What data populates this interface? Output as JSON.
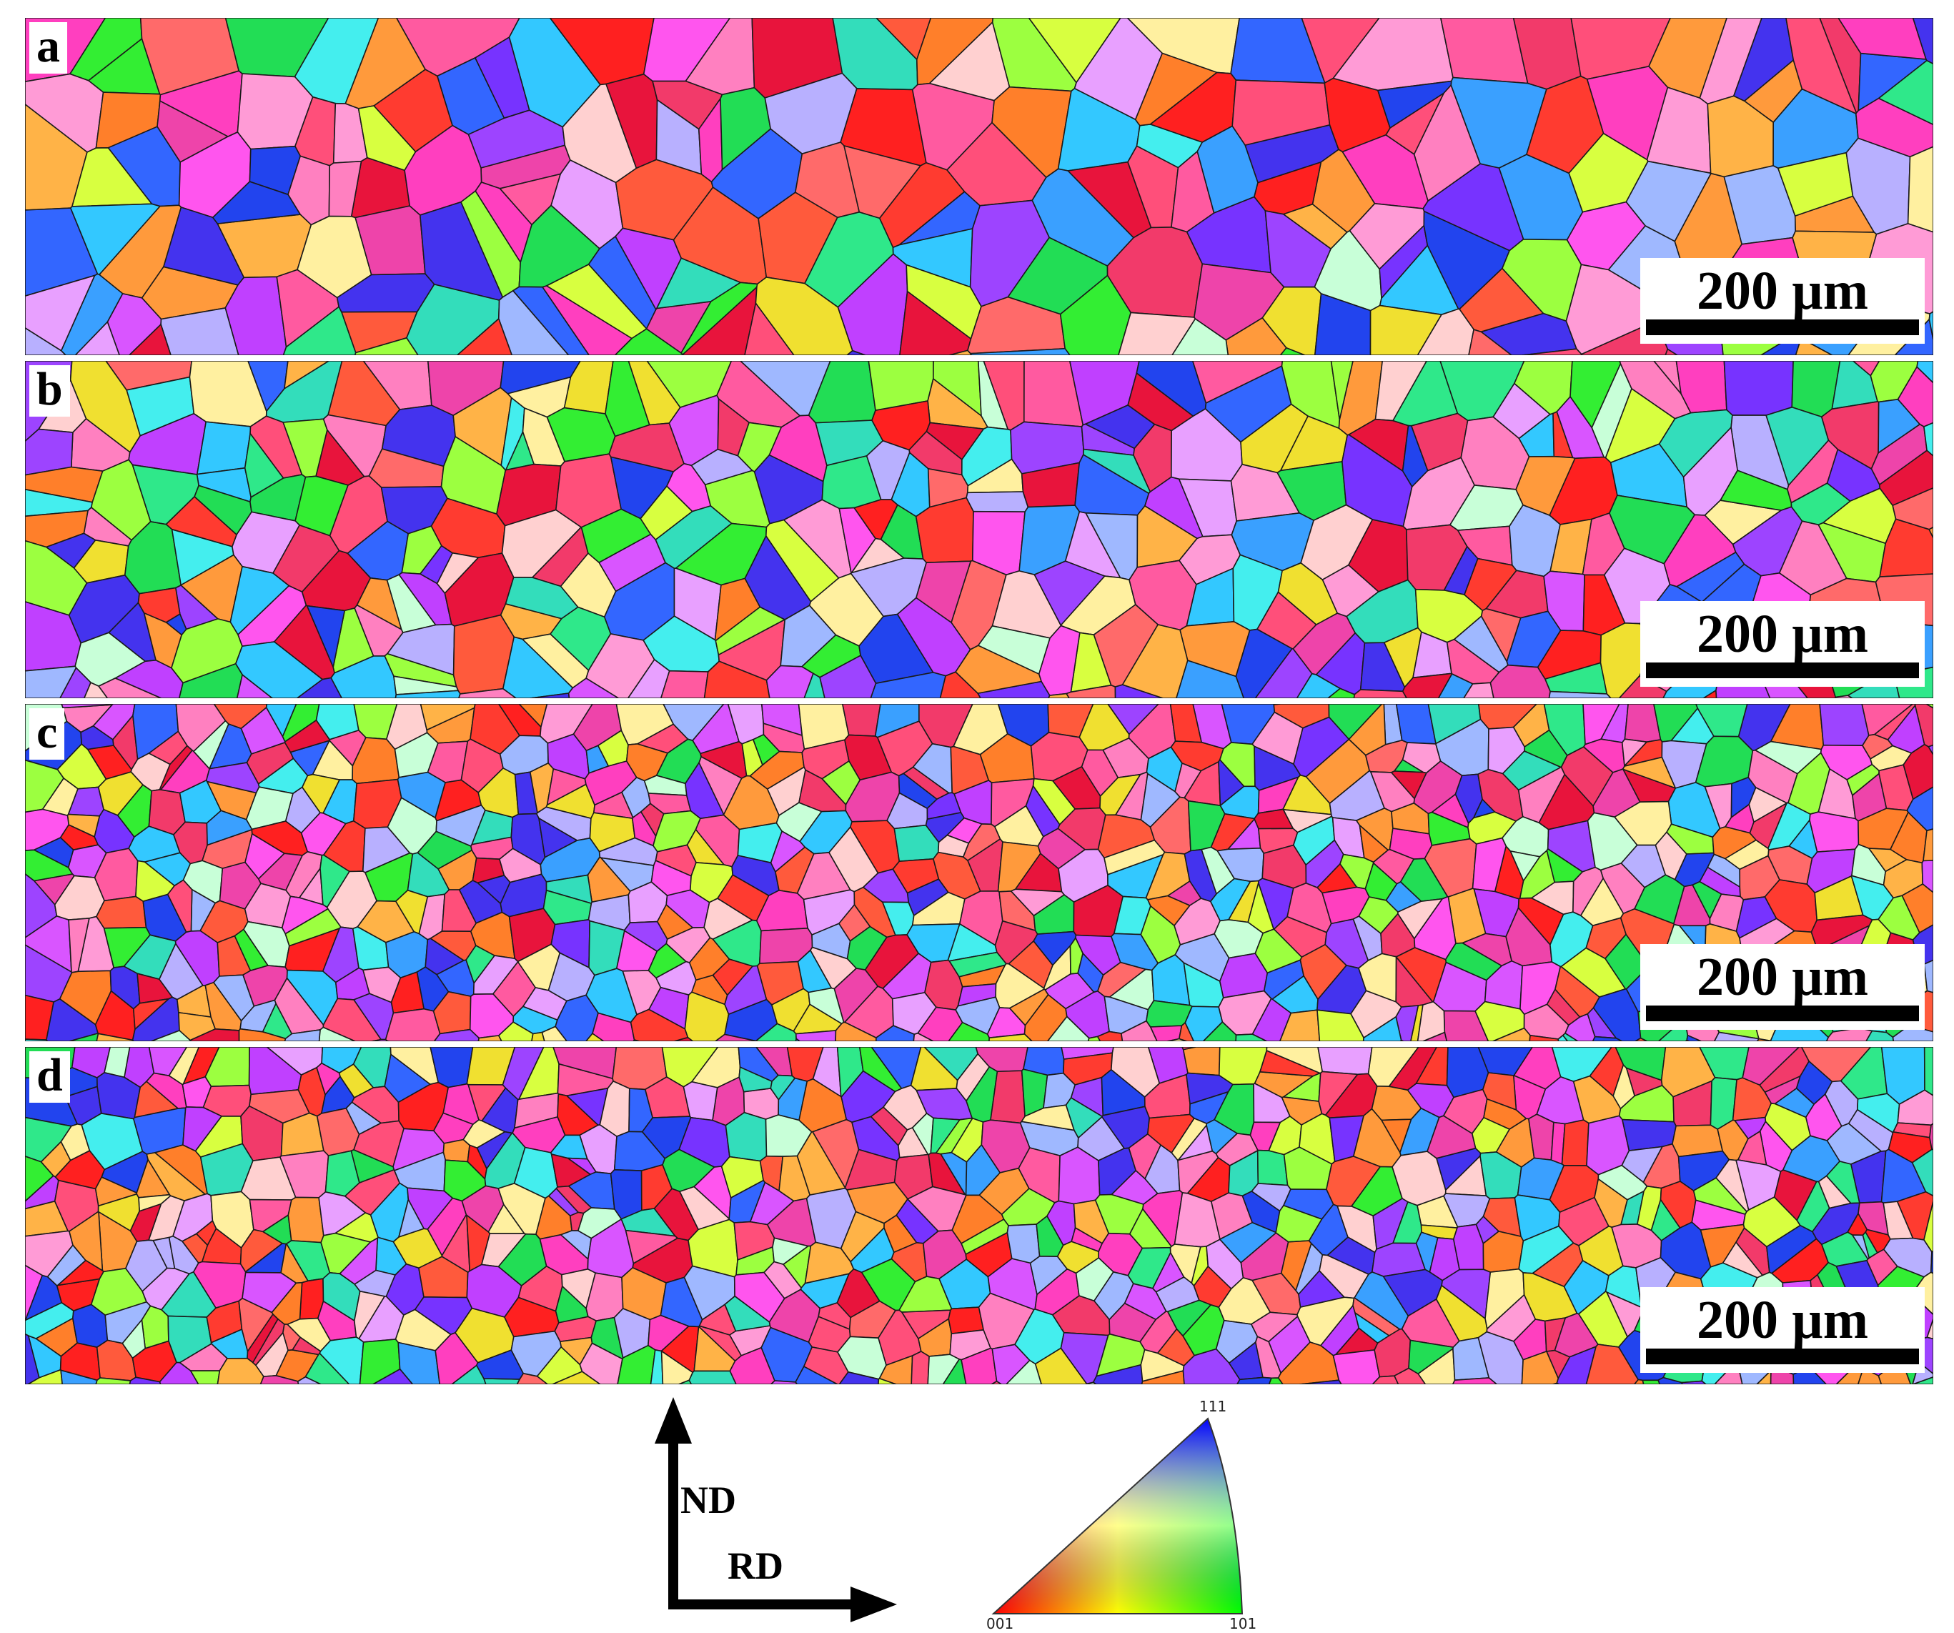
{
  "panels": [
    {
      "label": "a",
      "scale_label": "200 µm",
      "grain_scale": 1.0
    },
    {
      "label": "b",
      "scale_label": "200 µm",
      "grain_scale": 0.78
    },
    {
      "label": "c",
      "scale_label": "200 µm",
      "grain_scale": 0.55
    },
    {
      "label": "d",
      "scale_label": "200 µm",
      "grain_scale": 0.55
    }
  ],
  "axes": {
    "vertical": "ND",
    "horizontal": "RD"
  },
  "ipf_legend": {
    "corners": [
      "001",
      "101",
      "111"
    ],
    "colors": [
      "#ff0000",
      "#00ff00",
      "#0000ff"
    ]
  },
  "grain_palette": [
    "#ff2020",
    "#ff3b30",
    "#e8143c",
    "#ff5a3c",
    "#ff7f2a",
    "#ff9a3c",
    "#ffb347",
    "#f0e030",
    "#d8ff40",
    "#9cff40",
    "#33ee33",
    "#22dd55",
    "#2fe88a",
    "#33ddbb",
    "#44eeee",
    "#33c8ff",
    "#3aa0ff",
    "#3366ff",
    "#2244ee",
    "#4433ee",
    "#7733ff",
    "#9d44ff",
    "#c040ff",
    "#d955ff",
    "#ff55ee",
    "#ff3fbf",
    "#ff5aa0",
    "#ff80c0",
    "#ff9bd6",
    "#e8a0ff",
    "#b8b0ff",
    "#9fb8ff",
    "#c8ffd8",
    "#fff0a0",
    "#ffd0d0",
    "#ff6a6a",
    "#f23a6a",
    "#ee44aa",
    "#ff4f7a"
  ]
}
